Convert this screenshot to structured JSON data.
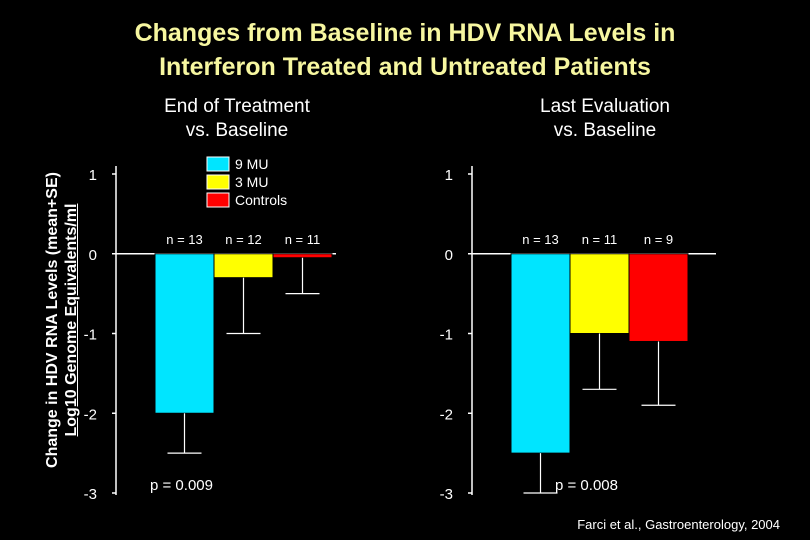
{
  "title_lines": [
    "Changes from Baseline in HDV RNA Levels in",
    "Interferon Treated and Untreated Patients"
  ],
  "y_label_lines": [
    "Change in HDV RNA Levels (mean+SE)",
    "Log10 Genome Equivalents/ml"
  ],
  "source": "Farci et al., Gastroenterology, 2004",
  "colors": {
    "9mu": "#00e5ff",
    "3mu": "#ffff00",
    "controls": "#ff0000",
    "axis": "#ffffff"
  },
  "legend": [
    "9 MU",
    "3 MU",
    "Controls"
  ],
  "chart_data": [
    {
      "type": "bar",
      "title": [
        "End of Treatment",
        "vs. Baseline"
      ],
      "ylim": [
        -3,
        1
      ],
      "yticks": [
        "1",
        "0",
        "-1",
        "-2",
        "-3"
      ],
      "series": [
        {
          "name": "9 MU",
          "value": -2.0,
          "err_low": -2.5,
          "n_label": "n = 13"
        },
        {
          "name": "3 MU",
          "value": -0.3,
          "err_low": -1.0,
          "n_label": "n = 12"
        },
        {
          "name": "Controls",
          "value": -0.05,
          "err_low": -0.5,
          "n_label": "n = 11"
        }
      ],
      "p_value": "p = 0.009"
    },
    {
      "type": "bar",
      "title": [
        "Last Evaluation",
        "vs. Baseline"
      ],
      "ylim": [
        -3,
        1
      ],
      "yticks": [
        "1",
        "0",
        "-1",
        "-2",
        "-3"
      ],
      "series": [
        {
          "name": "9 MU",
          "value": -2.5,
          "err_low": -3.0,
          "n_label": "n = 13"
        },
        {
          "name": "3 MU",
          "value": -1.0,
          "err_low": -1.7,
          "n_label": "n = 11"
        },
        {
          "name": "Controls",
          "value": -1.1,
          "err_low": -1.9,
          "n_label": "n = 9"
        }
      ],
      "p_value": "p = 0.008"
    }
  ]
}
